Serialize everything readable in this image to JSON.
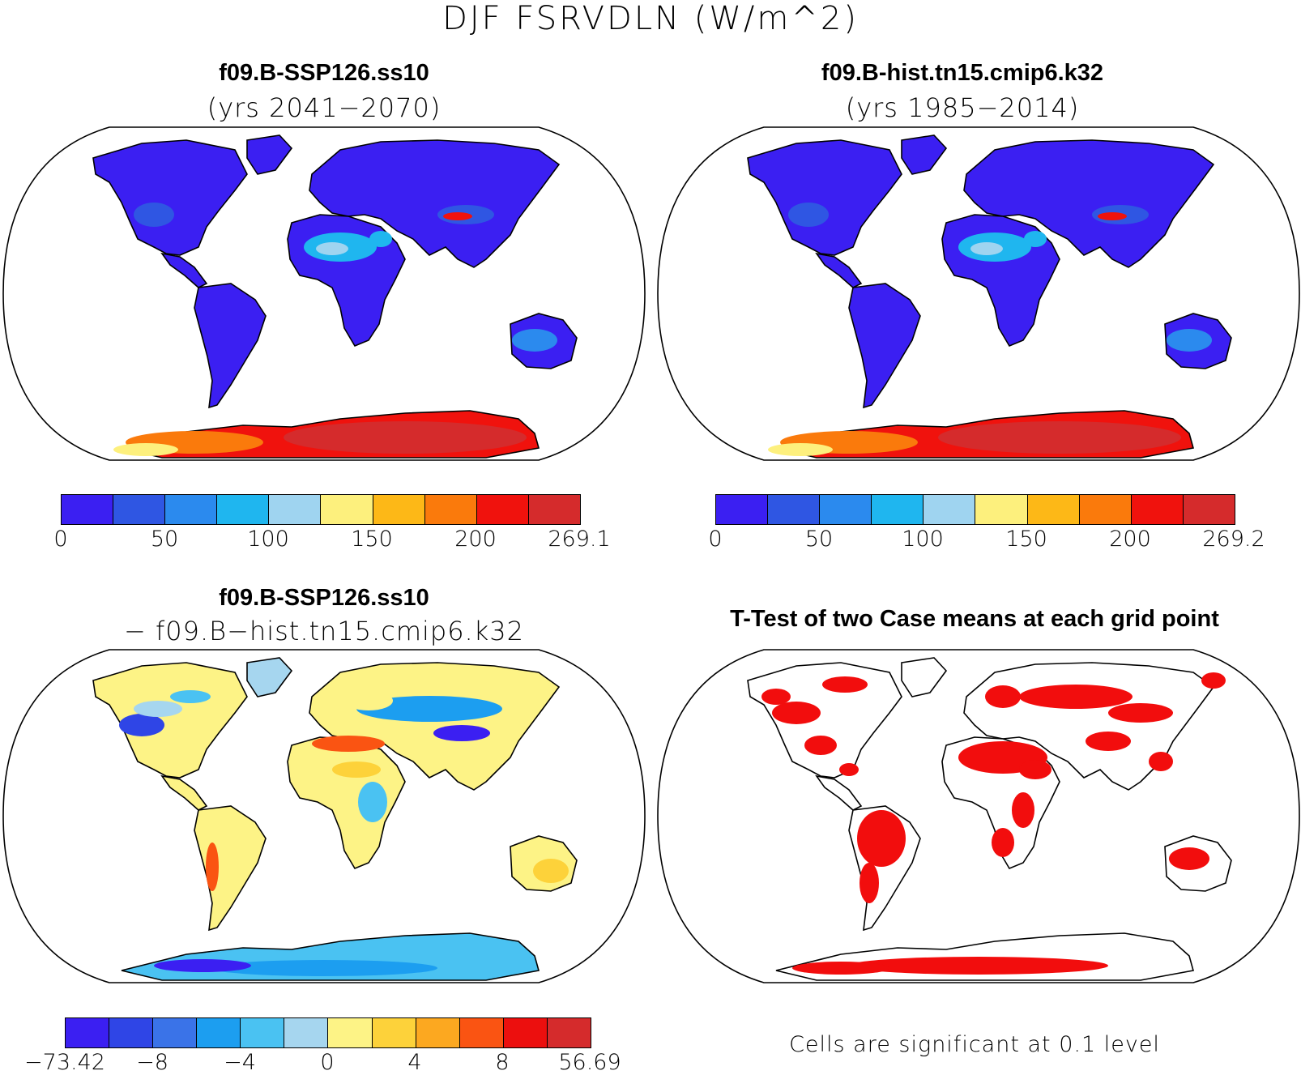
{
  "figure": {
    "title": "DJF FSRVDLN (W/m^2)"
  },
  "panels": [
    {
      "case": "f09.B-SSP126.ss10",
      "years": "(yrs 2041−2070)",
      "colorbar": {
        "colors": [
          "#3b1ff2",
          "#2f56e3",
          "#2b8aee",
          "#1fb6ef",
          "#9fd4f0",
          "#fdf07d",
          "#fdb817",
          "#fa7a0c",
          "#f0120d",
          "#d52b2c"
        ],
        "labels": [
          "0",
          "50",
          "100",
          "150",
          "200",
          "269.1"
        ]
      }
    },
    {
      "case": "f09.B-hist.tn15.cmip6.k32",
      "years": "(yrs 1985−2014)",
      "colorbar": {
        "colors": [
          "#3b1ff2",
          "#2f56e3",
          "#2b8aee",
          "#1fb6ef",
          "#9fd4f0",
          "#fdf07d",
          "#fdb817",
          "#fa7a0c",
          "#f0120d",
          "#d52b2c"
        ],
        "labels": [
          "0",
          "50",
          "100",
          "150",
          "200",
          "269.2"
        ]
      }
    },
    {
      "case": "f09.B-SSP126.ss10",
      "subtitle": "− f09.B−hist.tn15.cmip6.k32",
      "colorbar": {
        "colors": [
          "#3b1ff2",
          "#2f45e6",
          "#3a73e8",
          "#1c9ef0",
          "#4ac2f2",
          "#a6d6ef",
          "#fdf386",
          "#fdd23a",
          "#fca820",
          "#fa5412",
          "#ec0f0e",
          "#d52b2c"
        ],
        "labels": [
          "−73.42",
          "−8",
          "−4",
          "0",
          "4",
          "8",
          "56.69"
        ]
      }
    },
    {
      "title": "T-Test of two Case means at each grid point",
      "note": "Cells are significant at 0.1 level",
      "significant_color": "#f20d0d"
    }
  ]
}
